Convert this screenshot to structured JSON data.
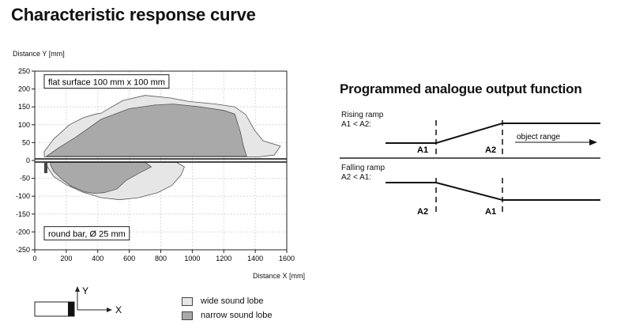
{
  "title": "Characteristic response curve",
  "chart_data": {
    "type": "area",
    "ylabel": "Distance Y [mm]",
    "xlabel": "Distance X [mm]",
    "xlim": [
      0,
      1600
    ],
    "ylim": [
      -250,
      250
    ],
    "x_ticks": [
      0,
      200,
      400,
      600,
      800,
      1000,
      1200,
      1400,
      1600
    ],
    "y_ticks": [
      250,
      200,
      150,
      100,
      50,
      0,
      -50,
      -100,
      -150,
      -200,
      -250
    ],
    "grid": true,
    "colors": {
      "wide": "#e6e6e6",
      "narrow": "#a9a9a9",
      "edge": "#555555"
    },
    "annotations": [
      {
        "text": "flat surface 100 mm x 100 mm",
        "x": 60,
        "y": 220
      },
      {
        "text": "round bar, Ø 25 mm",
        "x": 60,
        "y": -205
      }
    ],
    "series": [
      {
        "name": "wide sound lobe",
        "region": "upper",
        "points": [
          [
            60,
            25
          ],
          [
            120,
            60
          ],
          [
            220,
            100
          ],
          [
            310,
            120
          ],
          [
            390,
            130
          ],
          [
            420,
            132
          ],
          [
            560,
            168
          ],
          [
            700,
            182
          ],
          [
            860,
            175
          ],
          [
            980,
            165
          ],
          [
            1150,
            158
          ],
          [
            1270,
            150
          ],
          [
            1340,
            128
          ],
          [
            1395,
            85
          ],
          [
            1450,
            55
          ],
          [
            1560,
            40
          ],
          [
            1520,
            15
          ],
          [
            1420,
            10
          ],
          [
            60,
            10
          ]
        ]
      },
      {
        "name": "narrow sound lobe",
        "region": "upper",
        "points": [
          [
            75,
            12
          ],
          [
            150,
            35
          ],
          [
            260,
            65
          ],
          [
            340,
            90
          ],
          [
            420,
            115
          ],
          [
            600,
            145
          ],
          [
            760,
            155
          ],
          [
            880,
            158
          ],
          [
            1050,
            150
          ],
          [
            1200,
            140
          ],
          [
            1270,
            130
          ],
          [
            1305,
            80
          ],
          [
            1325,
            40
          ],
          [
            1345,
            12
          ],
          [
            75,
            12
          ]
        ]
      },
      {
        "name": "wide sound lobe",
        "region": "lower",
        "points": [
          [
            70,
            -5
          ],
          [
            900,
            -5
          ],
          [
            950,
            -18
          ],
          [
            930,
            -40
          ],
          [
            870,
            -70
          ],
          [
            780,
            -90
          ],
          [
            660,
            -104
          ],
          [
            540,
            -110
          ],
          [
            420,
            -104
          ],
          [
            300,
            -88
          ],
          [
            200,
            -68
          ],
          [
            120,
            -45
          ],
          [
            90,
            -25
          ],
          [
            70,
            -10
          ]
        ]
      },
      {
        "name": "narrow sound lobe",
        "region": "lower",
        "points": [
          [
            100,
            -5
          ],
          [
            700,
            -5
          ],
          [
            740,
            -18
          ],
          [
            660,
            -36
          ],
          [
            580,
            -56
          ],
          [
            520,
            -80
          ],
          [
            440,
            -90
          ],
          [
            380,
            -92
          ],
          [
            320,
            -88
          ],
          [
            230,
            -72
          ],
          [
            170,
            -52
          ],
          [
            120,
            -30
          ],
          [
            100,
            -12
          ]
        ]
      }
    ],
    "legend": [
      "wide sound lobe",
      "narrow sound lobe"
    ]
  },
  "sensor_axes": {
    "y": "Y",
    "x": "X"
  },
  "ramp": {
    "title": "Programmed analogue output function",
    "rising": {
      "label": "Rising ramp",
      "cond": "A1 < A2:",
      "start": "A1",
      "end": "A2",
      "range_label": "object range"
    },
    "falling": {
      "label": "Falling ramp",
      "cond": "A2 < A1:",
      "start": "A2",
      "end": "A1"
    }
  }
}
